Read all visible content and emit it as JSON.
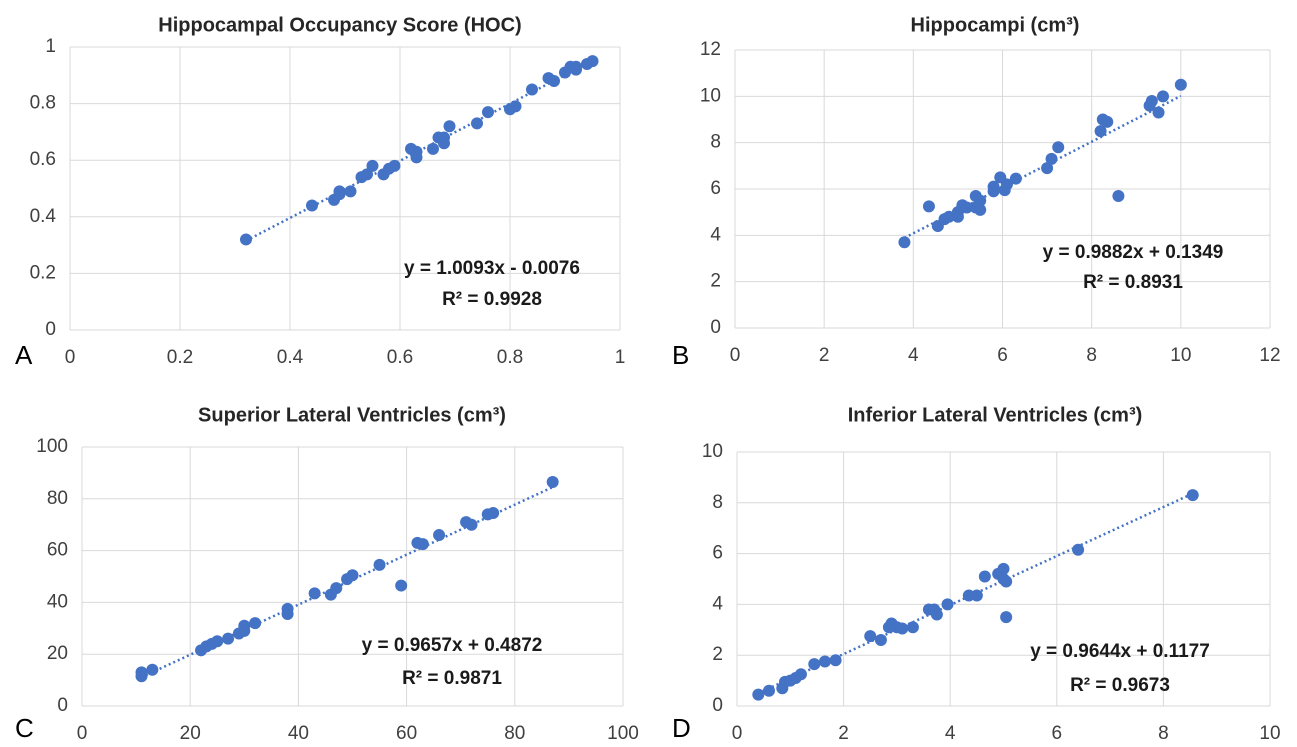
{
  "chart_data": [
    {
      "type": "scatter",
      "title": "Hippocampal Occupancy Score (HOC)",
      "panel_label": "A",
      "equation": "y = 1.0093x - 0.0076",
      "r_squared": "R² = 0.9928",
      "trendline": {
        "slope": 1.0093,
        "intercept": -0.0076
      },
      "color": "#4472c4",
      "x": [
        0.32,
        0.44,
        0.48,
        0.49,
        0.49,
        0.51,
        0.53,
        0.54,
        0.55,
        0.57,
        0.58,
        0.59,
        0.62,
        0.63,
        0.63,
        0.66,
        0.67,
        0.68,
        0.68,
        0.69,
        0.74,
        0.76,
        0.8,
        0.81,
        0.84,
        0.87,
        0.88,
        0.9,
        0.91,
        0.92,
        0.92,
        0.94,
        0.95
      ],
      "values": [
        0.32,
        0.44,
        0.46,
        0.49,
        0.48,
        0.49,
        0.54,
        0.55,
        0.58,
        0.55,
        0.57,
        0.58,
        0.64,
        0.63,
        0.61,
        0.64,
        0.68,
        0.68,
        0.66,
        0.72,
        0.73,
        0.77,
        0.78,
        0.79,
        0.85,
        0.89,
        0.88,
        0.91,
        0.93,
        0.92,
        0.93,
        0.94,
        0.95
      ],
      "xlim": [
        0,
        1
      ],
      "xticks": [
        0,
        0.2,
        0.4,
        0.6,
        0.8,
        1
      ],
      "ylim": [
        0,
        1
      ],
      "yticks": [
        0,
        0.2,
        0.4,
        0.6,
        0.8,
        1
      ],
      "grid": true
    },
    {
      "type": "scatter",
      "title": "Hippocampi (cm³)",
      "panel_label": "B",
      "equation": "y = 0.9882x + 0.1349",
      "r_squared": "R² = 0.8931",
      "trendline": {
        "slope": 0.9882,
        "intercept": 0.1349
      },
      "color": "#4472c4",
      "x": [
        3.8,
        4.35,
        4.55,
        4.7,
        4.8,
        5.0,
        5.0,
        5.1,
        5.2,
        5.4,
        5.4,
        5.5,
        5.5,
        5.8,
        5.8,
        5.95,
        6.05,
        6.1,
        6.3,
        7.0,
        7.1,
        7.25,
        8.2,
        8.25,
        8.35,
        8.6,
        9.3,
        9.35,
        9.5,
        9.6,
        10.0
      ],
      "values": [
        3.7,
        5.25,
        4.4,
        4.7,
        4.8,
        5.0,
        4.8,
        5.3,
        5.2,
        5.7,
        5.2,
        5.1,
        5.5,
        5.9,
        6.1,
        6.5,
        5.95,
        6.2,
        6.45,
        6.9,
        7.3,
        7.8,
        8.5,
        9.0,
        8.9,
        5.7,
        9.6,
        9.8,
        9.3,
        10.0,
        10.5
      ],
      "xlim": [
        0,
        12
      ],
      "xticks": [
        0,
        2,
        4,
        6,
        8,
        10,
        12
      ],
      "ylim": [
        0,
        12
      ],
      "yticks": [
        0,
        2,
        4,
        6,
        8,
        10,
        12
      ],
      "grid": true
    },
    {
      "type": "scatter",
      "title": "Superior Lateral Ventricles (cm³)",
      "panel_label": "C",
      "equation": "y = 0.9657x + 0.4872",
      "r_squared": "R² = 0.9871",
      "trendline": {
        "slope": 0.9657,
        "intercept": 0.4872
      },
      "color": "#4472c4",
      "x": [
        11,
        11,
        13,
        22,
        23,
        24,
        25,
        27,
        29,
        30,
        30,
        32,
        38,
        38,
        43,
        46,
        47,
        49,
        50,
        55,
        59,
        62,
        63,
        66,
        71,
        72,
        75,
        76,
        87
      ],
      "values": [
        11.5,
        13,
        14,
        21.5,
        23,
        24,
        25,
        26,
        28,
        29,
        31,
        32,
        35.5,
        37.5,
        43.5,
        43,
        45.5,
        49,
        50.5,
        54.5,
        46.5,
        63,
        62.5,
        66,
        71,
        70,
        74,
        74.5,
        86.5
      ],
      "xlim": [
        0,
        100
      ],
      "xticks": [
        0,
        20,
        40,
        60,
        80,
        100
      ],
      "ylim": [
        0,
        100
      ],
      "yticks": [
        0,
        20,
        40,
        60,
        80,
        100
      ],
      "grid": true
    },
    {
      "type": "scatter",
      "title": "Inferior Lateral Ventricles (cm³)",
      "panel_label": "D",
      "equation": "y = 0.9644x + 0.1177",
      "r_squared": "R² = 0.9673",
      "trendline": {
        "slope": 0.9644,
        "intercept": 0.1177
      },
      "color": "#4472c4",
      "x": [
        0.4,
        0.6,
        0.85,
        0.9,
        1.0,
        1.1,
        1.2,
        1.45,
        1.65,
        1.85,
        2.5,
        2.7,
        2.85,
        2.9,
        3.0,
        3.1,
        3.3,
        3.6,
        3.7,
        3.75,
        3.95,
        4.35,
        4.5,
        4.65,
        4.9,
        5.0,
        5.0,
        5.05,
        5.05,
        6.4,
        8.55
      ],
      "values": [
        0.45,
        0.6,
        0.7,
        0.95,
        1.0,
        1.1,
        1.25,
        1.65,
        1.75,
        1.8,
        2.75,
        2.6,
        3.1,
        3.25,
        3.1,
        3.05,
        3.1,
        3.8,
        3.8,
        3.6,
        4.0,
        4.35,
        4.35,
        5.1,
        5.2,
        5.4,
        5.0,
        3.5,
        4.9,
        6.15,
        8.3
      ],
      "xlim": [
        0,
        10
      ],
      "xticks": [
        0,
        2,
        4,
        6,
        8,
        10
      ],
      "ylim": [
        0,
        10
      ],
      "yticks": [
        0,
        2,
        4,
        6,
        8,
        10
      ],
      "grid": true
    }
  ]
}
